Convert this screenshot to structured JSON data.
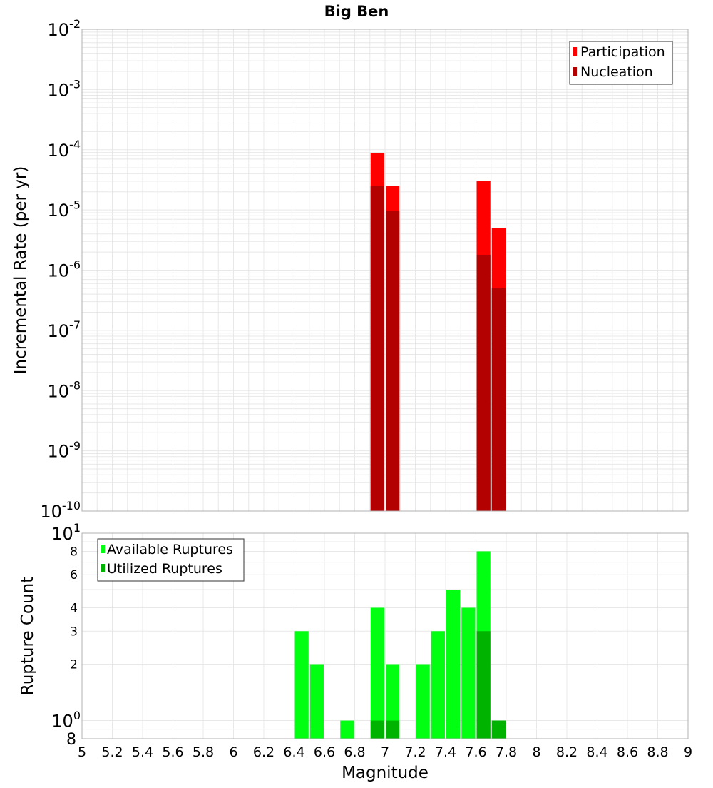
{
  "title": "Big Ben",
  "colors": {
    "participation": "#ff0000",
    "nucleation": "#b30000",
    "available": "#00ff11",
    "utilized": "#00b300",
    "grid": "#e8e8e8",
    "frame": "#b0b0b0"
  },
  "chart_data": [
    {
      "type": "bar",
      "scale": "log",
      "ylabel": "Incremental Rate (per yr)",
      "xlim": [
        5,
        9
      ],
      "ylim": [
        1e-10,
        0.01
      ],
      "ytick_labels": [
        {
          "base": "10",
          "exp": "-10"
        },
        {
          "base": "10",
          "exp": "-9"
        },
        {
          "base": "10",
          "exp": "-8"
        },
        {
          "base": "10",
          "exp": "-7"
        },
        {
          "base": "10",
          "exp": "-6"
        },
        {
          "base": "10",
          "exp": "-5"
        },
        {
          "base": "10",
          "exp": "-4"
        },
        {
          "base": "10",
          "exp": "-3"
        },
        {
          "base": "10",
          "exp": "-2"
        }
      ],
      "legend": {
        "placement": "top-right",
        "entries": [
          "Participation",
          "Nucleation"
        ]
      },
      "bin_width": 0.1,
      "series": [
        {
          "name": "Participation",
          "color": "#ff0000",
          "x": [
            6.95,
            7.05,
            7.65,
            7.75
          ],
          "values": [
            8.8e-05,
            2.5e-05,
            3e-05,
            5e-06
          ]
        },
        {
          "name": "Nucleation",
          "color": "#b30000",
          "x": [
            6.95,
            7.05,
            7.65,
            7.75
          ],
          "values": [
            2.5e-05,
            9.5e-06,
            1.8e-06,
            5e-07
          ]
        }
      ]
    },
    {
      "type": "bar",
      "scale": "log",
      "ylabel": "Rupture Count",
      "xlabel": "Magnitude",
      "xlim": [
        5,
        9
      ],
      "ylim": [
        0.8,
        10
      ],
      "x_ticks": [
        "5",
        "5.2",
        "5.4",
        "5.6",
        "5.8",
        "6",
        "6.2",
        "6.4",
        "6.6",
        "6.8",
        "7",
        "7.2",
        "7.4",
        "7.6",
        "7.8",
        "8",
        "8.2",
        "8.4",
        "8.6",
        "8.8",
        "9"
      ],
      "ytick_major": [
        {
          "base": "10",
          "exp": "1"
        },
        {
          "base": "10",
          "exp": "0"
        }
      ],
      "ytick_minor": [
        "8",
        "6",
        "4",
        "3",
        "2"
      ],
      "ybottom_label": "8",
      "legend": {
        "placement": "top-left",
        "entries": [
          "Available Ruptures",
          "Utilized Ruptures"
        ]
      },
      "bin_width": 0.1,
      "series": [
        {
          "name": "Available Ruptures",
          "color": "#00ff11",
          "x": [
            6.45,
            6.55,
            6.75,
            6.95,
            7.05,
            7.25,
            7.35,
            7.45,
            7.55,
            7.65,
            7.75
          ],
          "values": [
            3,
            2,
            1,
            4,
            2,
            2,
            3,
            5,
            4,
            8,
            1
          ]
        },
        {
          "name": "Utilized Ruptures",
          "color": "#00b300",
          "x": [
            6.95,
            7.05,
            7.65,
            7.75
          ],
          "values": [
            1,
            1,
            3,
            1
          ]
        }
      ]
    }
  ]
}
